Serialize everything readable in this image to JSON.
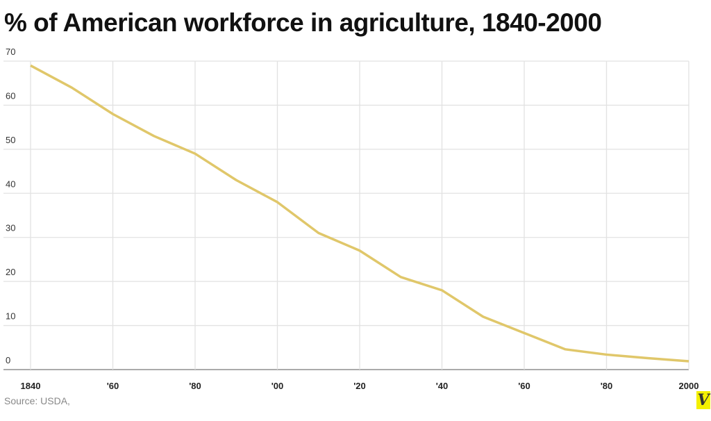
{
  "chart_data": {
    "type": "line",
    "title": "% of American workforce in agriculture, 1840-2000",
    "xlabel": "",
    "ylabel": "",
    "x": [
      1840,
      1850,
      1860,
      1870,
      1880,
      1890,
      1900,
      1910,
      1920,
      1930,
      1940,
      1950,
      1960,
      1970,
      1980,
      1990,
      2000
    ],
    "series": [
      {
        "values": [
          69,
          64,
          58,
          53,
          49,
          43,
          38,
          31,
          27,
          21,
          18,
          12,
          8.3,
          4.6,
          3.4,
          2.6,
          1.9
        ]
      }
    ],
    "xlim": [
      1840,
      2000
    ],
    "ylim": [
      0,
      70
    ],
    "x_ticks": [
      1840,
      1860,
      1880,
      1900,
      1920,
      1940,
      1960,
      1980,
      2000
    ],
    "x_tick_labels": [
      "1840",
      "'60",
      "'80",
      "'00",
      "'20",
      "'40",
      "'60",
      "'80",
      "2000"
    ],
    "y_ticks": [
      0,
      10,
      20,
      30,
      40,
      50,
      60,
      70
    ],
    "y_tick_labels": [
      "0",
      "10",
      "20",
      "30",
      "40",
      "50",
      "60",
      "70"
    ],
    "grid": true,
    "line_color": "#e0c76a",
    "source": "Source: USDA,"
  },
  "logo": "V"
}
